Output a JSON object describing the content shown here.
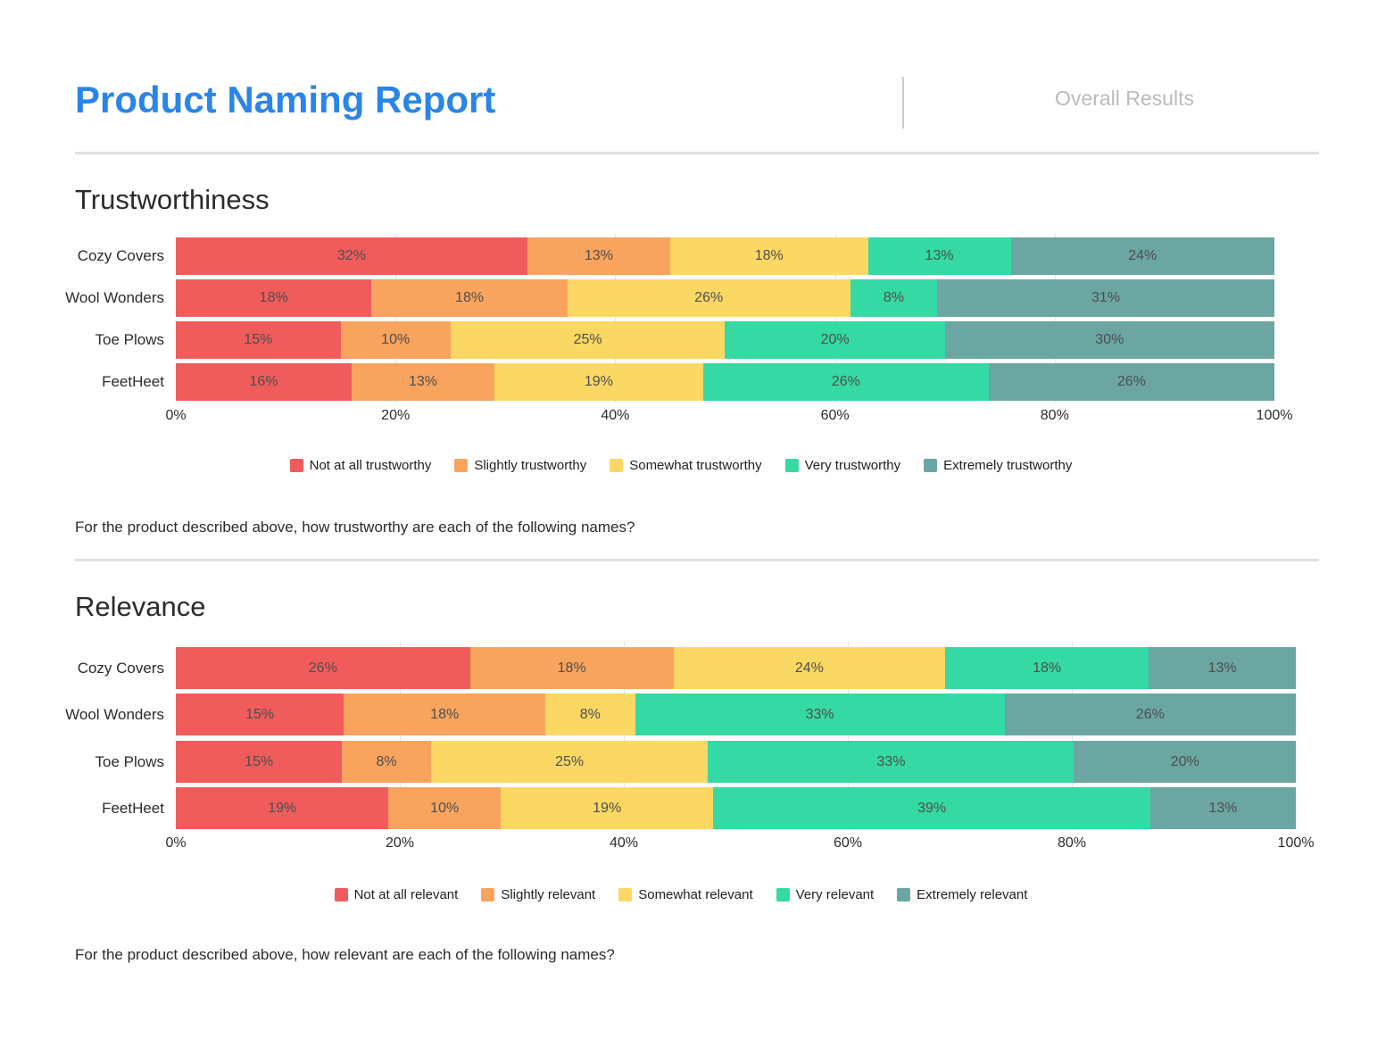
{
  "header": {
    "title": "Product Naming Report",
    "section_label": "Overall Results",
    "title_color": "#2A85E8",
    "section_label_color": "#BBBBBB"
  },
  "palette": {
    "red": "#F05C5C",
    "orange": "#F9A45E",
    "yellow": "#FBD863",
    "green": "#35D9A4",
    "teal": "#6BA6A2",
    "gridline": "#E3E3E3",
    "value_label": "#4D4D4D",
    "divider": "#E0E0E0"
  },
  "chart_data": [
    {
      "type": "bar",
      "orientation": "horizontal",
      "stacked": true,
      "section_title": "Trustworthiness",
      "question": "For the product described above, how trustworthy are each of the following names?",
      "categories": [
        "Cozy Covers",
        "Wool Wonders",
        "Toe Plows",
        "FeetHeet"
      ],
      "series": [
        {
          "name": "Not at all trustworthy",
          "color": "#F05C5C",
          "values": [
            32,
            18,
            15,
            16
          ]
        },
        {
          "name": "Slightly trustworthy",
          "color": "#F9A45E",
          "values": [
            13,
            18,
            10,
            13
          ]
        },
        {
          "name": "Somewhat trustworthy",
          "color": "#FBD863",
          "values": [
            18,
            26,
            25,
            19
          ]
        },
        {
          "name": "Very trustworthy",
          "color": "#35D9A4",
          "values": [
            13,
            8,
            20,
            26
          ]
        },
        {
          "name": "Extremely trustworthy",
          "color": "#6BA6A2",
          "values": [
            24,
            31,
            30,
            26
          ]
        }
      ],
      "value_suffix": "%",
      "x_ticks": [
        "0%",
        "20%",
        "40%",
        "60%",
        "80%",
        "100%"
      ],
      "xlim": [
        0,
        100
      ],
      "xlabel": "",
      "ylabel": "",
      "grid": true,
      "legend_position": "bottom"
    },
    {
      "type": "bar",
      "orientation": "horizontal",
      "stacked": true,
      "section_title": "Relevance",
      "question": "For the product described above, how relevant are each of the following names?",
      "categories": [
        "Cozy Covers",
        "Wool Wonders",
        "Toe Plows",
        "FeetHeet"
      ],
      "series": [
        {
          "name": "Not at all relevant",
          "color": "#F05C5C",
          "values": [
            26,
            15,
            15,
            19
          ]
        },
        {
          "name": "Slightly relevant",
          "color": "#F9A45E",
          "values": [
            18,
            18,
            8,
            10
          ]
        },
        {
          "name": "Somewhat relevant",
          "color": "#FBD863",
          "values": [
            24,
            8,
            25,
            19
          ]
        },
        {
          "name": "Very relevant",
          "color": "#35D9A4",
          "values": [
            18,
            33,
            33,
            39
          ]
        },
        {
          "name": "Extremely relevant",
          "color": "#6BA6A2",
          "values": [
            13,
            26,
            20,
            13
          ]
        }
      ],
      "value_suffix": "%",
      "x_ticks": [
        "0%",
        "20%",
        "40%",
        "60%",
        "80%",
        "100%"
      ],
      "xlim": [
        0,
        100
      ],
      "xlabel": "",
      "ylabel": "",
      "grid": true,
      "legend_position": "bottom"
    }
  ]
}
